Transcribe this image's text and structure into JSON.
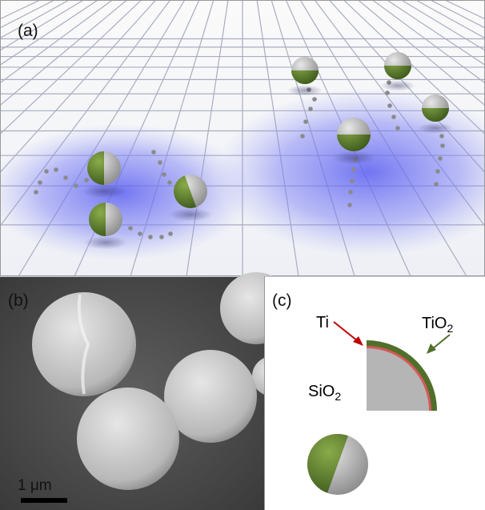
{
  "panel_a": {
    "label": "(a)"
  },
  "panel_b": {
    "label": "(b)",
    "scale_bar": "1 μm"
  },
  "panel_c": {
    "label": "(c)",
    "ti": "Ti",
    "tio2": {
      "base": "TiO",
      "sub": "2"
    },
    "sio2": {
      "base": "SiO",
      "sub": "2"
    }
  }
}
